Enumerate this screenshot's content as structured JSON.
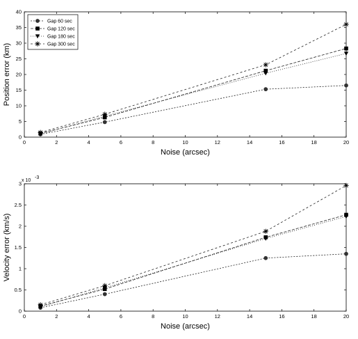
{
  "chart_data": [
    {
      "type": "line",
      "title": "",
      "xlabel": "Noise (arcsec)",
      "ylabel": "Position error (km)",
      "xlim": [
        0,
        20
      ],
      "ylim": [
        0,
        40
      ],
      "xticks": [
        0,
        2,
        4,
        6,
        8,
        10,
        12,
        14,
        16,
        18,
        20
      ],
      "yticks": [
        0,
        5,
        10,
        15,
        20,
        25,
        30,
        35,
        40
      ],
      "x": [
        1,
        5,
        15,
        20
      ],
      "legend_position": "top-left",
      "series": [
        {
          "name": "Gap 60 sec",
          "marker": "circle",
          "values": [
            0.9,
            4.8,
            15.3,
            16.5
          ]
        },
        {
          "name": "Gap 120 sec",
          "marker": "square",
          "values": [
            1.2,
            6.3,
            21.2,
            28.3
          ]
        },
        {
          "name": "Gap 180 sec",
          "marker": "triangle-down",
          "values": [
            1.0,
            6.7,
            20.4,
            26.7
          ]
        },
        {
          "name": "Gap 300 sec",
          "marker": "star",
          "values": [
            1.5,
            7.3,
            23.1,
            36.0
          ]
        }
      ]
    },
    {
      "type": "line",
      "title": "",
      "xlabel": "Noise (arcsec)",
      "ylabel": "Velocity error (km/s)",
      "y_exponent_label": "x 10",
      "y_exponent": "-3",
      "xlim": [
        0,
        20
      ],
      "ylim": [
        0,
        3
      ],
      "xticks": [
        0,
        2,
        4,
        6,
        8,
        10,
        12,
        14,
        16,
        18,
        20
      ],
      "yticks": [
        0,
        0.5,
        1,
        1.5,
        2,
        2.5,
        3
      ],
      "x": [
        1,
        5,
        15,
        20
      ],
      "series": [
        {
          "marker": "circle",
          "values": [
            0.08,
            0.4,
            1.25,
            1.35
          ]
        },
        {
          "marker": "square",
          "values": [
            0.12,
            0.52,
            1.74,
            2.27
          ]
        },
        {
          "marker": "triangle-down",
          "values": [
            0.1,
            0.55,
            1.71,
            2.23
          ]
        },
        {
          "marker": "star",
          "values": [
            0.15,
            0.6,
            1.88,
            2.96
          ]
        }
      ]
    }
  ]
}
